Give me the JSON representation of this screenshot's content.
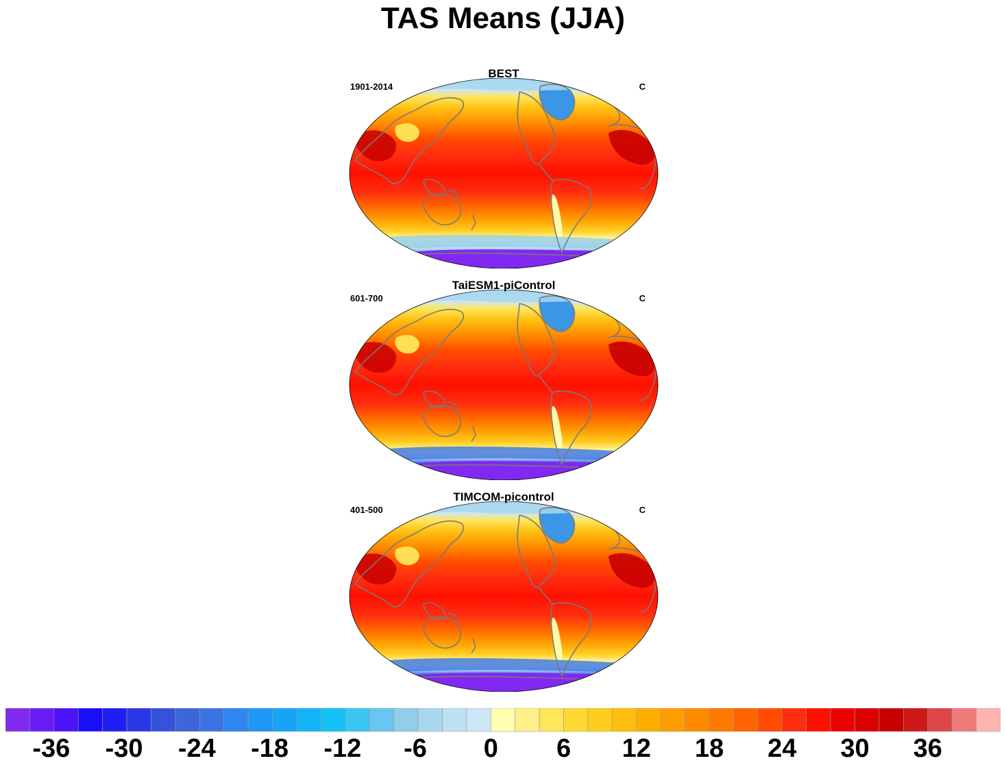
{
  "title": "TAS Means (JJA)",
  "panels": [
    {
      "title": "BEST",
      "left_label": "1901-2014",
      "right_label": "C"
    },
    {
      "title": "TaiESM1-piControl",
      "left_label": "601-700",
      "right_label": "C"
    },
    {
      "title": "TIMCOM-picontrol",
      "left_label": "401-500",
      "right_label": "C"
    }
  ],
  "colorbar": {
    "colors": [
      "#8129f0",
      "#6a1bf5",
      "#4a14f7",
      "#1a0dfb",
      "#1f1ff5",
      "#2a37e6",
      "#3552dd",
      "#3d66d8",
      "#3b74e2",
      "#2f86f0",
      "#1e97f5",
      "#17a4f7",
      "#14b3f7",
      "#14c2f7",
      "#3cc6f4",
      "#68c6f0",
      "#94cdea",
      "#a8d8ee",
      "#bee1f2",
      "#cde6f6",
      "#ffffb0",
      "#fff08a",
      "#ffe65a",
      "#ffd932",
      "#ffcc20",
      "#ffbf10",
      "#ffae00",
      "#ff9d00",
      "#ff8a00",
      "#ff7800",
      "#ff6400",
      "#ff4c00",
      "#ff2e10",
      "#ff1000",
      "#ee0000",
      "#dd0000",
      "#c80000",
      "#cc1818",
      "#dd4646",
      "#ee7a7a",
      "#ffb4b4"
    ],
    "ticks": [
      "-36",
      "-30",
      "-24",
      "-18",
      "-12",
      "-6",
      "0",
      "6",
      "12",
      "18",
      "24",
      "30",
      "36"
    ]
  }
}
